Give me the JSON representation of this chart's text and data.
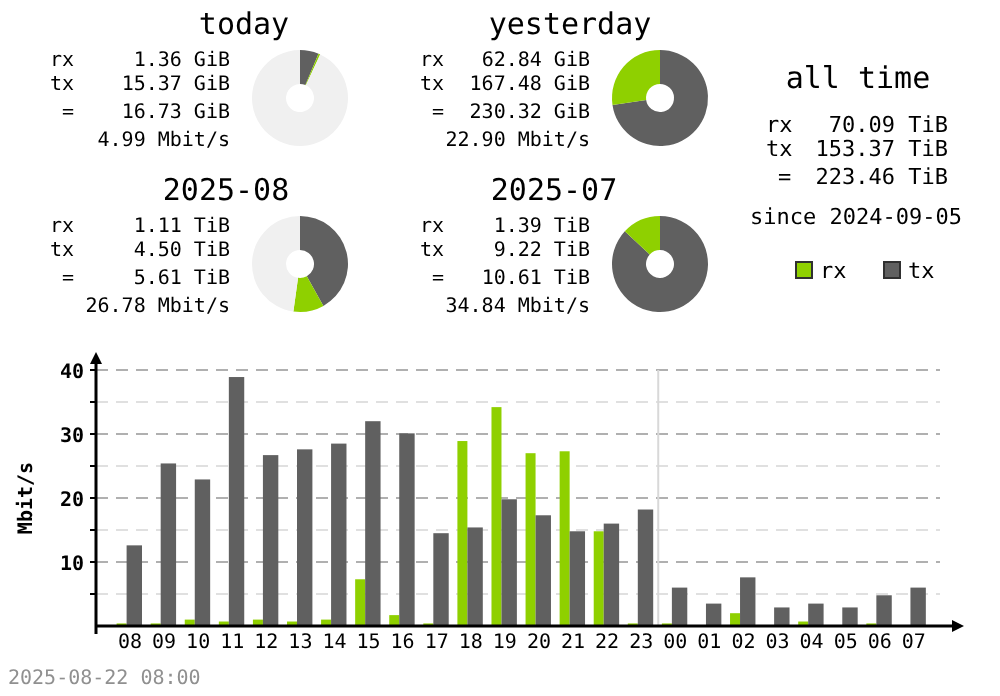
{
  "chart_data": [
    {
      "type": "donut",
      "title": "today",
      "categories": [
        null,
        null,
        null
      ],
      "values": [
        6.3,
        0.6,
        93.1
      ],
      "colors": [
        "#606060",
        "#8fd000",
        "#f0f0f0"
      ],
      "annotations": [
        "rx",
        "1.36 GiB",
        "tx",
        "15.37 GiB",
        "=",
        "16.73 GiB",
        "4.99 Mbit/s"
      ]
    },
    {
      "type": "donut",
      "title": "yesterday",
      "categories": [
        null,
        null
      ],
      "values": [
        72.7,
        27.3
      ],
      "colors": [
        "#606060",
        "#8fd000"
      ],
      "annotations": [
        "rx",
        "62.84 GiB",
        "tx",
        "167.48 GiB",
        "=",
        "230.32 GiB",
        "22.90 Mbit/s"
      ]
    },
    {
      "type": "other",
      "title": "all time",
      "annotations": [
        "rx",
        "70.09 TiB",
        "tx",
        "153.37 TiB",
        "=",
        "223.46 TiB",
        "since 2024-09-05"
      ]
    },
    {
      "type": "donut",
      "title": "2025-08",
      "categories": [
        null,
        null,
        null
      ],
      "values": [
        41.9,
        10.3,
        47.8
      ],
      "colors": [
        "#606060",
        "#8fd000",
        "#f0f0f0"
      ],
      "annotations": [
        "rx",
        "1.11 TiB",
        "tx",
        "4.50 TiB",
        "=",
        "5.61 TiB",
        "26.78 Mbit/s"
      ]
    },
    {
      "type": "donut",
      "title": "2025-07",
      "categories": [
        null,
        null
      ],
      "values": [
        86.9,
        13.1
      ],
      "colors": [
        "#606060",
        "#8fd000"
      ],
      "annotations": [
        "rx",
        "1.39 TiB",
        "tx",
        "9.22 TiB",
        "=",
        "10.61 TiB",
        "34.84 Mbit/s"
      ]
    },
    {
      "type": "bar",
      "ylabel": "Mbit/s",
      "categories": [
        "08",
        "09",
        "10",
        "11",
        "12",
        "13",
        "14",
        "15",
        "16",
        "17",
        "18",
        "19",
        "20",
        "21",
        "22",
        "23",
        "00",
        "01",
        "02",
        "03",
        "04",
        "05",
        "06",
        "07"
      ],
      "series": [
        {
          "name": "rx",
          "color": "#8fd000",
          "values": [
            0.4,
            0.4,
            1.0,
            0.7,
            1.0,
            0.7,
            1.0,
            7.3,
            1.7,
            0.4,
            28.9,
            34.2,
            27.0,
            27.3,
            14.8,
            0.4,
            0.4,
            0,
            2.0,
            0,
            0.7,
            0,
            0.4,
            0
          ]
        },
        {
          "name": "tx",
          "color": "#606060",
          "values": [
            12.6,
            25.4,
            22.9,
            38.9,
            26.7,
            27.6,
            28.5,
            32.0,
            30.1,
            14.5,
            15.4,
            19.8,
            17.3,
            14.8,
            16.0,
            18.2,
            6.0,
            3.5,
            7.6,
            2.9,
            3.5,
            2.9,
            4.8,
            6.0
          ]
        }
      ],
      "ylim": [
        0,
        40
      ],
      "yticks": [
        {
          "value": 5,
          "label": null
        },
        10,
        {
          "value": 15,
          "label": null
        },
        20,
        {
          "value": 25,
          "label": null
        },
        30,
        {
          "value": 35,
          "label": null
        },
        40
      ],
      "grid": "y",
      "legend": "top right",
      "ref_lines": [
        {
          "axis": "x",
          "value": "00",
          "color": "#d8d8d8"
        }
      ],
      "annotations": [
        "2025-08-22 08:00"
      ]
    }
  ]
}
